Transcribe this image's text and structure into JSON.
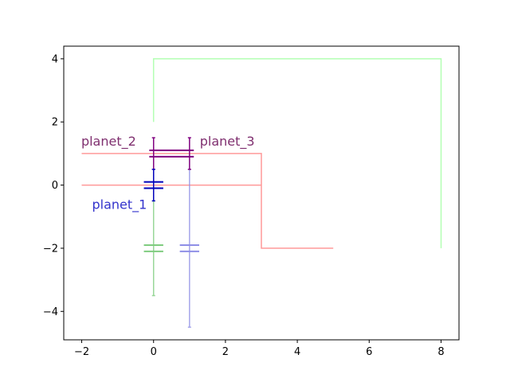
{
  "chart_data": {
    "type": "line",
    "xlim": [
      -2.5,
      8.5
    ],
    "ylim": [
      -4.9,
      4.4
    ],
    "x_ticks": [
      -2,
      0,
      2,
      4,
      6,
      8
    ],
    "y_ticks": [
      -4,
      -2,
      0,
      2,
      4
    ],
    "x_tick_labels": [
      "−2",
      "0",
      "2",
      "4",
      "6",
      "8"
    ],
    "y_tick_labels": [
      "−4",
      "−2",
      "0",
      "2",
      "4"
    ],
    "grid": false,
    "colors": {
      "red_lines": "#ff9999",
      "green_lines": "#b3ffb3",
      "green_errorbar": "#7fcc7f",
      "blue_errorbar": "#8f8fe6",
      "purple": "#800080",
      "navy": "#0000bb",
      "label_purple": "#7f2f6f",
      "label_blue": "#3333cc"
    },
    "lines": [
      {
        "name": "red_upper",
        "color": "#ff9999",
        "points": [
          [
            -2,
            1
          ],
          [
            3,
            1
          ],
          [
            3,
            -2
          ],
          [
            5,
            -2
          ]
        ]
      },
      {
        "name": "red_lower",
        "color": "#ff9999",
        "points": [
          [
            -2,
            0
          ],
          [
            3,
            0
          ]
        ]
      },
      {
        "name": "green_bracket",
        "color": "#b3ffb3",
        "points": [
          [
            0,
            2
          ],
          [
            0,
            4
          ],
          [
            8,
            4
          ],
          [
            8,
            -2
          ]
        ]
      }
    ],
    "error_bars": [
      {
        "orientation": "vertical",
        "x": 0,
        "y": -2,
        "low": -3.5,
        "high": -0.5,
        "color": "#7fcc7f",
        "opacity": 0.8
      },
      {
        "orientation": "vertical",
        "x": 1,
        "y": -2,
        "low": -4.5,
        "high": 0.5,
        "color": "#8f8fe6",
        "opacity": 0.8
      },
      {
        "orientation": "vertical",
        "x": 0,
        "y": 1,
        "low": 0.5,
        "high": 1.5,
        "color": "#800080",
        "opacity": 1
      },
      {
        "orientation": "vertical",
        "x": 1,
        "y": 1,
        "low": 0.5,
        "high": 1.5,
        "color": "#800080",
        "opacity": 1
      },
      {
        "orientation": "vertical",
        "x": 0,
        "y": 0,
        "low": -0.5,
        "high": 0.5,
        "color": "#0000bb",
        "opacity": 1
      }
    ],
    "caps": [
      {
        "x": 0,
        "y": -1.9,
        "half_width": 0.27,
        "color": "#7fcc7f"
      },
      {
        "x": 0,
        "y": -2.1,
        "half_width": 0.27,
        "color": "#7fcc7f"
      },
      {
        "x": 1,
        "y": -1.9,
        "half_width": 0.27,
        "color": "#8f8fe6"
      },
      {
        "x": 1,
        "y": -2.1,
        "half_width": 0.27,
        "color": "#8f8fe6"
      },
      {
        "x": 0.5,
        "y": 1.1,
        "half_width": 0.62,
        "color": "#800080"
      },
      {
        "x": 0.5,
        "y": 0.9,
        "half_width": 0.62,
        "color": "#800080"
      },
      {
        "x": 0,
        "y": 0.1,
        "half_width": 0.27,
        "color": "#0000bb"
      },
      {
        "x": 0,
        "y": -0.1,
        "half_width": 0.27,
        "color": "#0000bb"
      }
    ],
    "annotations": [
      {
        "text": "planet_2",
        "x": -1.25,
        "y": 1.4,
        "anchor": "middle",
        "color": "#7f2f6f"
      },
      {
        "text": "planet_3",
        "x": 2.05,
        "y": 1.4,
        "anchor": "middle",
        "color": "#7f2f6f"
      },
      {
        "text": "planet_1",
        "x": -0.95,
        "y": -0.6,
        "anchor": "middle",
        "color": "#3333cc"
      }
    ]
  }
}
